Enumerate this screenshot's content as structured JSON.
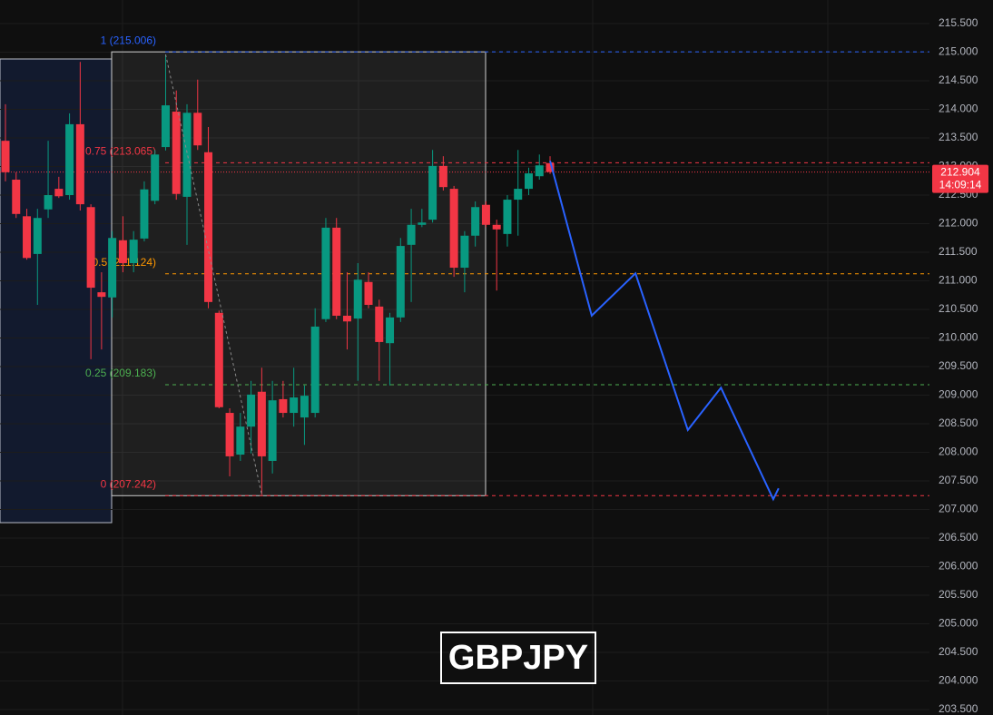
{
  "chart_data": {
    "type": "candlestick",
    "symbol": "GBPJPY",
    "open": [
      213.45,
      212.77,
      212.13,
      211.47,
      212.25,
      212.61,
      212.5,
      213.74,
      212.29,
      210.8,
      210.71,
      211.71,
      211.31,
      211.74,
      212.4,
      213.34,
      213.96,
      212.47,
      213.94,
      213.25,
      210.44,
      208.69,
      207.96,
      208.45,
      209.06,
      207.85,
      208.93,
      208.69,
      208.61,
      208.69,
      210.33,
      211.93,
      210.39,
      210.34,
      210.98,
      210.55,
      209.91,
      210.36,
      211.63,
      211.98,
      212.07,
      213.01,
      212.61,
      211.23,
      211.79,
      212.33,
      211.98,
      211.82,
      212.42,
      212.61,
      212.83,
      213.06
    ],
    "high": [
      214.09,
      212.9,
      212.26,
      212.26,
      213.45,
      212.82,
      213.93,
      214.83,
      212.34,
      211.15,
      211.87,
      212.13,
      211.87,
      212.74,
      213.29,
      214.96,
      214.33,
      214.09,
      214.52,
      213.69,
      210.48,
      208.77,
      208.69,
      209.25,
      209.48,
      209.25,
      209.25,
      209.48,
      209.17,
      210.52,
      212.1,
      212.1,
      211.15,
      211.31,
      211.15,
      210.67,
      210.44,
      211.75,
      212.26,
      212.26,
      213.29,
      213.18,
      212.66,
      211.87,
      212.39,
      212.39,
      212.07,
      212.5,
      213.29,
      212.98,
      213.21,
      213.18
    ],
    "low": [
      212.74,
      212.1,
      211.37,
      210.58,
      212.1,
      212.45,
      212.42,
      212.23,
      209.63,
      209.8,
      210.36,
      211.15,
      211.15,
      211.69,
      212.34,
      213.28,
      212.42,
      211.63,
      213.29,
      210.52,
      208.77,
      207.58,
      207.85,
      207.98,
      207.26,
      207.63,
      208.61,
      208.45,
      208.13,
      208.61,
      210.28,
      210.33,
      209.8,
      209.25,
      210.52,
      209.25,
      209.17,
      210.28,
      210.63,
      211.94,
      212.02,
      212.58,
      211.07,
      210.8,
      211.6,
      211.94,
      210.83,
      211.6,
      211.79,
      212.5,
      212.77,
      212.87
    ],
    "close": [
      212.9,
      212.17,
      211.4,
      212.1,
      212.5,
      212.48,
      213.74,
      212.34,
      210.88,
      210.72,
      211.75,
      211.31,
      211.72,
      212.6,
      213.21,
      214.07,
      212.52,
      213.94,
      213.37,
      210.63,
      208.79,
      207.93,
      208.45,
      209.01,
      207.93,
      208.91,
      208.69,
      208.96,
      208.99,
      210.2,
      211.93,
      210.39,
      210.29,
      211.02,
      210.58,
      209.93,
      210.36,
      211.61,
      211.98,
      212.02,
      213.01,
      212.64,
      211.23,
      211.79,
      212.29,
      211.98,
      211.9,
      212.42,
      212.61,
      212.88,
      213.02,
      212.904
    ],
    "up_color": "#089981",
    "down_color": "#f23645",
    "ylim": [
      203.405,
      215.913
    ],
    "yticks": [
      {
        "value": 215.5,
        "label": "215.500"
      },
      {
        "value": 215.0,
        "label": "215.000"
      },
      {
        "value": 214.5,
        "label": "214.500"
      },
      {
        "value": 214.0,
        "label": "214.000"
      },
      {
        "value": 213.5,
        "label": "213.500"
      },
      {
        "value": 213.0,
        "label": "213.000"
      },
      {
        "value": 212.5,
        "label": "212.500"
      },
      {
        "value": 212.0,
        "label": "212.000"
      },
      {
        "value": 211.5,
        "label": "211.500"
      },
      {
        "value": 211.0,
        "label": "211.000"
      },
      {
        "value": 210.5,
        "label": "210.500"
      },
      {
        "value": 210.0,
        "label": "210.000"
      },
      {
        "value": 209.5,
        "label": "209.500"
      },
      {
        "value": 209.0,
        "label": "209.000"
      },
      {
        "value": 208.5,
        "label": "208.500"
      },
      {
        "value": 208.0,
        "label": "208.000"
      },
      {
        "value": 207.5,
        "label": "207.500"
      },
      {
        "value": 207.0,
        "label": "207.000"
      },
      {
        "value": 206.5,
        "label": "206.500"
      },
      {
        "value": 206.0,
        "label": "206.000"
      },
      {
        "value": 205.5,
        "label": "205.500"
      },
      {
        "value": 205.0,
        "label": "205.000"
      },
      {
        "value": 204.5,
        "label": "204.500"
      },
      {
        "value": 204.0,
        "label": "204.000"
      },
      {
        "value": 203.5,
        "label": "203.500"
      }
    ],
    "grid": true,
    "last_price": 212.904,
    "countdown": "14:09:14",
    "fib_levels": [
      {
        "value": 215.006,
        "label": "1 (215.006)",
        "color": "#2962ff"
      },
      {
        "value": 213.065,
        "label": "0.75 (213.065)",
        "color": "#f23645"
      },
      {
        "value": 211.124,
        "label": "0.5 (211.124)",
        "color": "#ff9800"
      },
      {
        "value": 209.183,
        "label": "0.25 (209.183)",
        "color": "#4caf50"
      },
      {
        "value": 207.242,
        "label": "0 (207.242)",
        "color": "#f23645"
      }
    ],
    "projection": {
      "x": [
        51,
        54.9,
        59.0,
        63.9,
        67.0,
        71.9,
        72.4
      ],
      "values": [
        213.1,
        210.39,
        211.13,
        208.39,
        209.13,
        207.18,
        207.37
      ],
      "color": "#2962ff"
    }
  }
}
